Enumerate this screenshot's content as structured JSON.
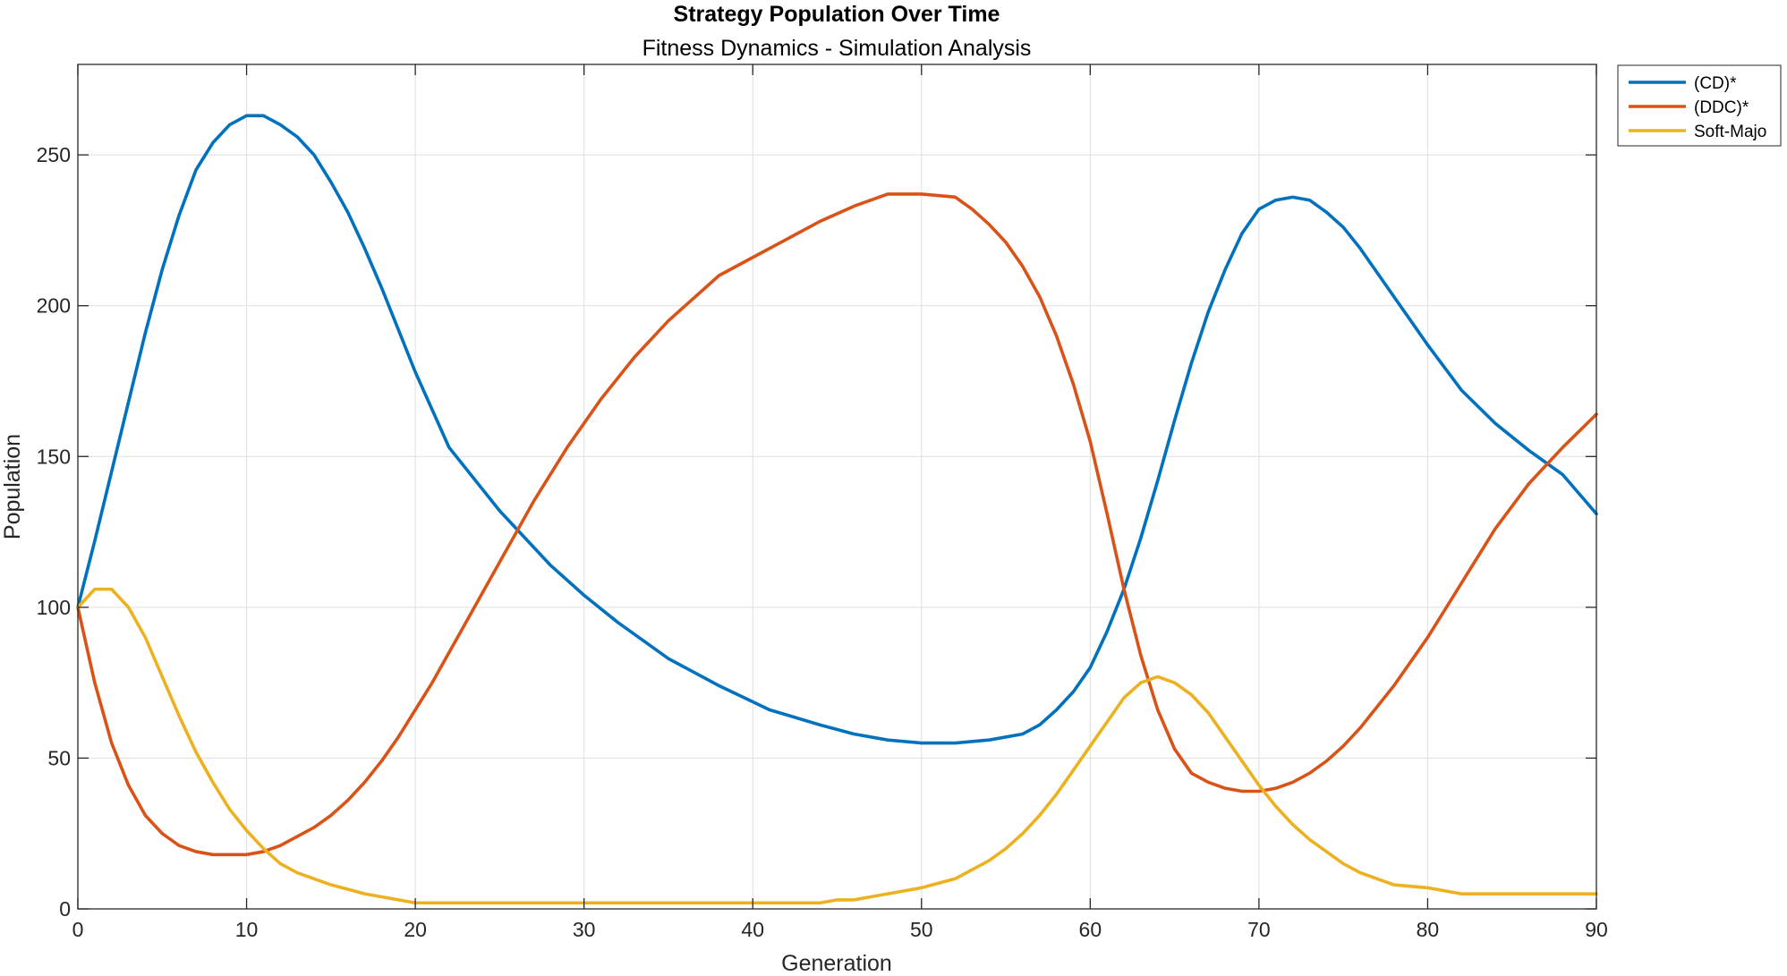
{
  "chart_data": {
    "type": "line",
    "title": "Strategy Population Over Time",
    "subtitle": "Fitness Dynamics - Simulation Analysis",
    "xlabel": "Generation",
    "ylabel": "Population",
    "xlim": [
      0,
      90
    ],
    "ylim": [
      0,
      280
    ],
    "xticks": [
      0,
      10,
      20,
      30,
      40,
      50,
      60,
      70,
      80,
      90
    ],
    "yticks": [
      0,
      50,
      100,
      150,
      200,
      250
    ],
    "grid": true,
    "legend_position": "outside-top-right",
    "series": [
      {
        "name": "(CD)*",
        "color": "#0072BD",
        "points": [
          [
            0,
            100
          ],
          [
            1,
            122
          ],
          [
            2,
            145
          ],
          [
            3,
            168
          ],
          [
            4,
            191
          ],
          [
            5,
            212
          ],
          [
            6,
            230
          ],
          [
            7,
            245
          ],
          [
            8,
            254
          ],
          [
            9,
            260
          ],
          [
            10,
            263
          ],
          [
            11,
            263
          ],
          [
            12,
            260
          ],
          [
            13,
            256
          ],
          [
            14,
            250
          ],
          [
            15,
            241
          ],
          [
            16,
            231
          ],
          [
            17,
            219
          ],
          [
            18,
            206
          ],
          [
            19,
            192
          ],
          [
            20,
            178
          ],
          [
            22,
            153
          ],
          [
            25,
            132
          ],
          [
            28,
            114
          ],
          [
            30,
            104
          ],
          [
            32,
            95
          ],
          [
            35,
            83
          ],
          [
            38,
            74
          ],
          [
            41,
            66
          ],
          [
            44,
            61
          ],
          [
            46,
            58
          ],
          [
            48,
            56
          ],
          [
            50,
            55
          ],
          [
            52,
            55
          ],
          [
            54,
            56
          ],
          [
            56,
            58
          ],
          [
            57,
            61
          ],
          [
            58,
            66
          ],
          [
            59,
            72
          ],
          [
            60,
            80
          ],
          [
            61,
            92
          ],
          [
            62,
            106
          ],
          [
            63,
            123
          ],
          [
            64,
            142
          ],
          [
            65,
            162
          ],
          [
            66,
            181
          ],
          [
            67,
            198
          ],
          [
            68,
            212
          ],
          [
            69,
            224
          ],
          [
            70,
            232
          ],
          [
            71,
            235
          ],
          [
            72,
            236
          ],
          [
            73,
            235
          ],
          [
            74,
            231
          ],
          [
            75,
            226
          ],
          [
            76,
            219
          ],
          [
            77,
            211
          ],
          [
            78,
            203
          ],
          [
            79,
            195
          ],
          [
            80,
            187
          ],
          [
            82,
            172
          ],
          [
            84,
            161
          ],
          [
            86,
            152
          ],
          [
            88,
            144
          ],
          [
            90,
            131
          ]
        ]
      },
      {
        "name": "(DDC)*",
        "color": "#D95319",
        "points": [
          [
            0,
            100
          ],
          [
            1,
            75
          ],
          [
            2,
            55
          ],
          [
            3,
            41
          ],
          [
            4,
            31
          ],
          [
            5,
            25
          ],
          [
            6,
            21
          ],
          [
            7,
            19
          ],
          [
            8,
            18
          ],
          [
            9,
            18
          ],
          [
            10,
            18
          ],
          [
            11,
            19
          ],
          [
            12,
            21
          ],
          [
            13,
            24
          ],
          [
            14,
            27
          ],
          [
            15,
            31
          ],
          [
            16,
            36
          ],
          [
            17,
            42
          ],
          [
            18,
            49
          ],
          [
            19,
            57
          ],
          [
            20,
            66
          ],
          [
            21,
            75
          ],
          [
            22,
            85
          ],
          [
            23,
            95
          ],
          [
            24,
            105
          ],
          [
            25,
            115
          ],
          [
            26,
            125
          ],
          [
            27,
            135
          ],
          [
            28,
            144
          ],
          [
            29,
            153
          ],
          [
            30,
            161
          ],
          [
            31,
            169
          ],
          [
            32,
            176
          ],
          [
            33,
            183
          ],
          [
            34,
            189
          ],
          [
            35,
            195
          ],
          [
            36,
            200
          ],
          [
            37,
            205
          ],
          [
            38,
            210
          ],
          [
            40,
            216
          ],
          [
            42,
            222
          ],
          [
            44,
            228
          ],
          [
            46,
            233
          ],
          [
            48,
            237
          ],
          [
            50,
            237
          ],
          [
            52,
            236
          ],
          [
            53,
            232
          ],
          [
            54,
            227
          ],
          [
            55,
            221
          ],
          [
            56,
            213
          ],
          [
            57,
            203
          ],
          [
            58,
            190
          ],
          [
            59,
            174
          ],
          [
            60,
            155
          ],
          [
            61,
            131
          ],
          [
            62,
            106
          ],
          [
            63,
            84
          ],
          [
            64,
            66
          ],
          [
            65,
            53
          ],
          [
            66,
            45
          ],
          [
            67,
            42
          ],
          [
            68,
            40
          ],
          [
            69,
            39
          ],
          [
            70,
            39
          ],
          [
            71,
            40
          ],
          [
            72,
            42
          ],
          [
            73,
            45
          ],
          [
            74,
            49
          ],
          [
            75,
            54
          ],
          [
            76,
            60
          ],
          [
            77,
            67
          ],
          [
            78,
            74
          ],
          [
            79,
            82
          ],
          [
            80,
            90
          ],
          [
            82,
            108
          ],
          [
            84,
            126
          ],
          [
            86,
            141
          ],
          [
            88,
            153
          ],
          [
            90,
            164
          ]
        ]
      },
      {
        "name": "Soft-Majo",
        "color": "#EDB120",
        "points": [
          [
            0,
            100
          ],
          [
            1,
            106
          ],
          [
            2,
            106
          ],
          [
            3,
            100
          ],
          [
            4,
            90
          ],
          [
            5,
            77
          ],
          [
            6,
            64
          ],
          [
            7,
            52
          ],
          [
            8,
            42
          ],
          [
            9,
            33
          ],
          [
            10,
            26
          ],
          [
            11,
            20
          ],
          [
            12,
            15
          ],
          [
            13,
            12
          ],
          [
            14,
            10
          ],
          [
            15,
            8
          ],
          [
            17,
            5
          ],
          [
            20,
            2
          ],
          [
            25,
            2
          ],
          [
            30,
            2
          ],
          [
            35,
            2
          ],
          [
            40,
            2
          ],
          [
            44,
            2
          ],
          [
            45,
            3
          ],
          [
            46,
            3
          ],
          [
            47,
            4
          ],
          [
            48,
            5
          ],
          [
            50,
            7
          ],
          [
            52,
            10
          ],
          [
            54,
            16
          ],
          [
            55,
            20
          ],
          [
            56,
            25
          ],
          [
            57,
            31
          ],
          [
            58,
            38
          ],
          [
            59,
            46
          ],
          [
            60,
            54
          ],
          [
            61,
            62
          ],
          [
            62,
            70
          ],
          [
            63,
            75
          ],
          [
            64,
            77
          ],
          [
            65,
            75
          ],
          [
            66,
            71
          ],
          [
            67,
            65
          ],
          [
            68,
            57
          ],
          [
            69,
            49
          ],
          [
            70,
            41
          ],
          [
            71,
            34
          ],
          [
            72,
            28
          ],
          [
            73,
            23
          ],
          [
            74,
            19
          ],
          [
            75,
            15
          ],
          [
            76,
            12
          ],
          [
            77,
            10
          ],
          [
            78,
            8
          ],
          [
            80,
            7
          ],
          [
            82,
            5
          ],
          [
            85,
            5
          ],
          [
            88,
            5
          ],
          [
            90,
            5
          ]
        ]
      }
    ]
  }
}
